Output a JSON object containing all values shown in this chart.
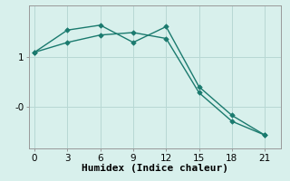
{
  "xlabel": "Humidex (Indice chaleur)",
  "background_color": "#d8f0ec",
  "line_color": "#1a7a6e",
  "grid_color": "#b8d8d4",
  "line1_x": [
    0,
    3,
    6,
    9,
    12,
    15,
    18,
    21
  ],
  "line1_y": [
    1.1,
    1.55,
    1.65,
    1.3,
    1.62,
    0.4,
    -0.18,
    -0.58
  ],
  "line2_x": [
    0,
    3,
    6,
    9,
    12,
    15,
    18,
    21
  ],
  "line2_y": [
    1.1,
    1.3,
    1.45,
    1.5,
    1.38,
    0.28,
    -0.3,
    -0.58
  ],
  "xlim": [
    -0.5,
    22.5
  ],
  "ylim": [
    -0.85,
    2.05
  ],
  "xticks": [
    0,
    3,
    6,
    9,
    12,
    15,
    18,
    21
  ],
  "ytick_positions": [
    1.0,
    0.0
  ],
  "ytick_labels": [
    "1",
    "-0"
  ],
  "marker": "D",
  "markersize": 2.8,
  "linewidth": 1.0,
  "fontsize_axis": 8,
  "fontsize_ticks": 7.5
}
